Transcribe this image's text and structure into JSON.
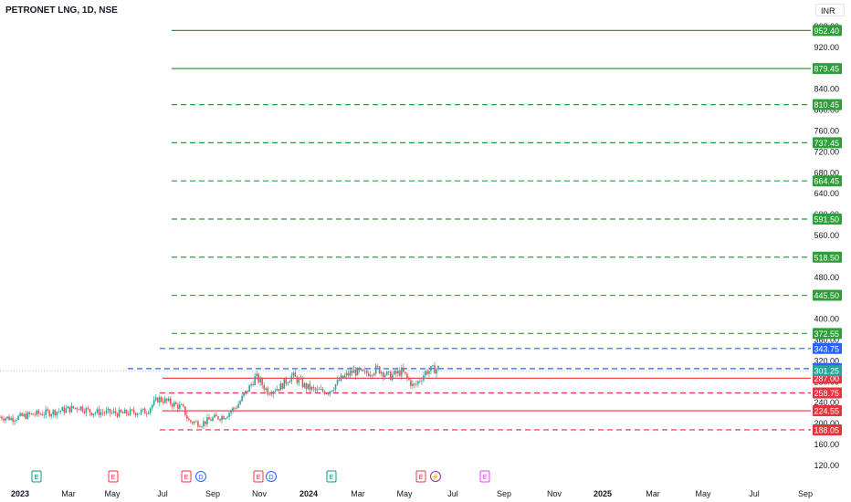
{
  "header": {
    "symbol_title": "PETRONET LNG, 1D, NSE",
    "currency": "INR"
  },
  "colors": {
    "green_level": "#2e9e3a",
    "red_level": "#e8323c",
    "blue_level": "#2962ff",
    "candle_up": "#26a69a",
    "candle_down": "#ef5350",
    "axis_text": "#131722"
  },
  "chart_data": {
    "type": "candlestick",
    "y_axis": {
      "range": [
        110,
        965
      ],
      "tick_labels": [
        "960.00",
        "920.00",
        "880.00",
        "840.00",
        "800.00",
        "760.00",
        "720.00",
        "680.00",
        "640.00",
        "600.00",
        "560.00",
        "520.00",
        "480.00",
        "440.00",
        "400.00",
        "360.00",
        "320.00",
        "280.00",
        "240.00",
        "200.00",
        "160.00",
        "120.00"
      ]
    },
    "x_axis": {
      "tick_labels": [
        {
          "label": "2023",
          "bold": true
        },
        {
          "label": "Mar"
        },
        {
          "label": "May"
        },
        {
          "label": "Jul"
        },
        {
          "label": "Sep"
        },
        {
          "label": "Nov"
        },
        {
          "label": "2024",
          "bold": true
        },
        {
          "label": "Mar"
        },
        {
          "label": "May"
        },
        {
          "label": "Jul"
        },
        {
          "label": "Sep"
        },
        {
          "label": "Nov"
        },
        {
          "label": "2025",
          "bold": true
        },
        {
          "label": "Mar"
        },
        {
          "label": "May"
        },
        {
          "label": "Jul"
        },
        {
          "label": "Sep"
        }
      ]
    },
    "levels": [
      {
        "value": 952.4,
        "label": "952.40",
        "color": "green",
        "style": "solid"
      },
      {
        "value": 879.45,
        "label": "879.45",
        "color": "green",
        "style": "solid"
      },
      {
        "value": 810.45,
        "label": "810.45",
        "color": "green",
        "style": "dashed"
      },
      {
        "value": 737.45,
        "label": "737.45",
        "color": "green",
        "style": "dashed"
      },
      {
        "value": 664.45,
        "label": "664.45",
        "color": "green",
        "style": "dashed"
      },
      {
        "value": 591.5,
        "label": "591.50",
        "color": "green",
        "style": "dashed"
      },
      {
        "value": 518.5,
        "label": "518.50",
        "color": "green",
        "style": "dashed"
      },
      {
        "value": 445.5,
        "label": "445.50",
        "color": "green",
        "style": "dashed"
      },
      {
        "value": 372.55,
        "label": "372.55",
        "color": "green",
        "style": "dashed"
      },
      {
        "value": 343.75,
        "label": "343.75",
        "color": "blue",
        "style": "dashed"
      },
      {
        "value": 305.25,
        "label": "305.25",
        "color": "blue",
        "style": "dashed"
      },
      {
        "value": 287.0,
        "label": "287.00",
        "color": "red",
        "style": "solid"
      },
      {
        "value": 258.75,
        "label": "258.75",
        "color": "red",
        "style": "dashed"
      },
      {
        "value": 224.55,
        "label": "224.55",
        "color": "red",
        "style": "solid"
      },
      {
        "value": 188.05,
        "label": "188.05",
        "color": "red",
        "style": "dashed"
      }
    ],
    "last_price": {
      "value": 301.25,
      "label": "301.25"
    },
    "price_path": [
      [
        0,
        213
      ],
      [
        0.02,
        210
      ],
      [
        0.05,
        217
      ],
      [
        0.08,
        221
      ],
      [
        0.11,
        227
      ],
      [
        0.13,
        232
      ],
      [
        0.15,
        222
      ],
      [
        0.18,
        221
      ],
      [
        0.2,
        219
      ],
      [
        0.22,
        222
      ],
      [
        0.24,
        223
      ],
      [
        0.26,
        248
      ],
      [
        0.28,
        240
      ],
      [
        0.3,
        230
      ],
      [
        0.31,
        205
      ],
      [
        0.33,
        200
      ],
      [
        0.35,
        210
      ],
      [
        0.37,
        215
      ],
      [
        0.39,
        235
      ],
      [
        0.41,
        270
      ],
      [
        0.42,
        290
      ],
      [
        0.44,
        262
      ],
      [
        0.46,
        270
      ],
      [
        0.48,
        292
      ],
      [
        0.5,
        272
      ],
      [
        0.52,
        262
      ],
      [
        0.54,
        262
      ],
      [
        0.56,
        285
      ],
      [
        0.58,
        300
      ],
      [
        0.6,
        295
      ],
      [
        0.62,
        305
      ],
      [
        0.64,
        290
      ],
      [
        0.66,
        300
      ],
      [
        0.68,
        270
      ],
      [
        0.7,
        300
      ],
      [
        0.72,
        306
      ]
    ],
    "event_markers": [
      {
        "letter": "E",
        "color": "#089981"
      },
      {
        "letter": "E",
        "color": "#f23645"
      },
      {
        "letter": "E",
        "color": "#f23645"
      },
      {
        "letter": "D",
        "color": "#2962ff"
      },
      {
        "letter": "E",
        "color": "#f23645"
      },
      {
        "letter": "D",
        "color": "#2962ff"
      },
      {
        "letter": "E",
        "color": "#089981"
      },
      {
        "letter": "E",
        "color": "#f23645"
      },
      {
        "letter": "⚡",
        "color": "#9c27b0"
      },
      {
        "letter": "E",
        "color": "#e040fb"
      }
    ]
  }
}
